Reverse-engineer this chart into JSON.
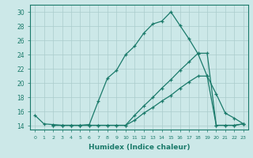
{
  "xlabel": "Humidex (Indice chaleur)",
  "ylabel": "",
  "background_color": "#cce8e8",
  "grid_color": "#aacccc",
  "line_color": "#1a7a6a",
  "xlim": [
    -0.5,
    23.5
  ],
  "ylim": [
    13.5,
    31
  ],
  "yticks": [
    14,
    16,
    18,
    20,
    22,
    24,
    26,
    28,
    30
  ],
  "xticks": [
    0,
    1,
    2,
    3,
    4,
    5,
    6,
    7,
    8,
    9,
    10,
    11,
    12,
    13,
    14,
    15,
    16,
    17,
    18,
    19,
    20,
    21,
    22,
    23
  ],
  "line1_x": [
    0,
    1,
    2,
    3,
    4,
    5,
    6,
    7,
    8,
    9,
    10,
    11,
    12,
    13,
    14,
    15,
    16,
    17,
    18,
    19,
    20,
    21,
    22,
    23
  ],
  "line1_y": [
    15.5,
    14.3,
    14.2,
    14.1,
    14.1,
    14.1,
    14.2,
    17.5,
    20.7,
    21.8,
    24.0,
    25.2,
    27.0,
    28.3,
    28.7,
    30.0,
    28.1,
    26.2,
    24.1,
    21.0,
    18.5,
    15.8,
    15.1,
    14.3
  ],
  "line2_x": [
    2,
    3,
    4,
    5,
    6,
    7,
    8,
    9,
    10,
    11,
    12,
    13,
    14,
    15,
    16,
    17,
    18,
    19,
    20,
    21,
    22,
    23
  ],
  "line2_y": [
    14.1,
    14.1,
    14.1,
    14.1,
    14.1,
    14.1,
    14.1,
    14.1,
    14.1,
    15.5,
    16.8,
    18.0,
    19.3,
    20.5,
    21.8,
    23.0,
    24.2,
    24.2,
    14.1,
    14.1,
    14.1,
    14.3
  ],
  "line3_x": [
    2,
    3,
    4,
    5,
    6,
    7,
    8,
    9,
    10,
    11,
    12,
    13,
    14,
    15,
    16,
    17,
    18,
    19,
    20,
    21,
    22,
    23
  ],
  "line3_y": [
    14.1,
    14.1,
    14.1,
    14.1,
    14.1,
    14.1,
    14.1,
    14.1,
    14.1,
    14.8,
    15.8,
    16.6,
    17.5,
    18.3,
    19.3,
    20.2,
    21.0,
    21.0,
    14.1,
    14.1,
    14.1,
    14.3
  ]
}
